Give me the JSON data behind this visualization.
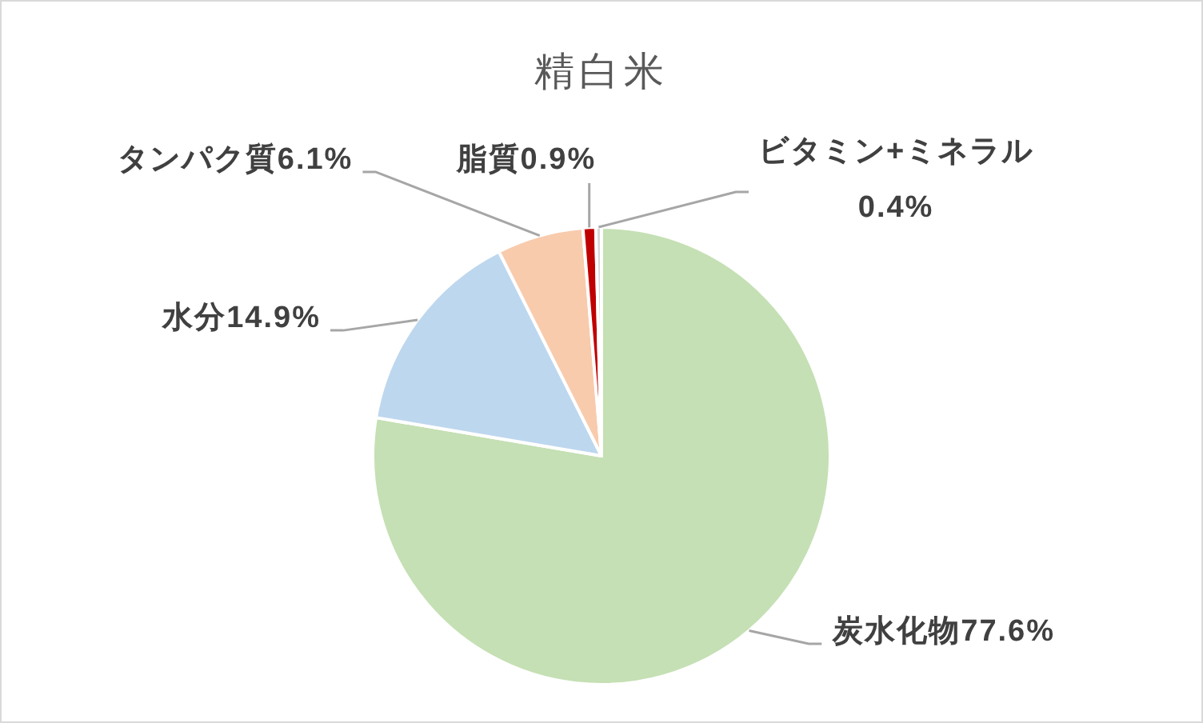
{
  "chart_data": {
    "type": "pie",
    "title": "精白米",
    "categories": [
      "炭水化物",
      "水分",
      "タンパク質",
      "脂質",
      "ビタミン+ミネラル"
    ],
    "values": [
      77.6,
      14.9,
      6.1,
      0.9,
      0.4
    ],
    "colors": [
      "#c5e0b4",
      "#bdd7ee",
      "#f8cbad",
      "#c00000",
      "#d9d9d9"
    ],
    "value_labels": [
      "77.6%",
      "14.9%",
      "6.1%",
      "0.9%",
      "0.4%"
    ]
  }
}
